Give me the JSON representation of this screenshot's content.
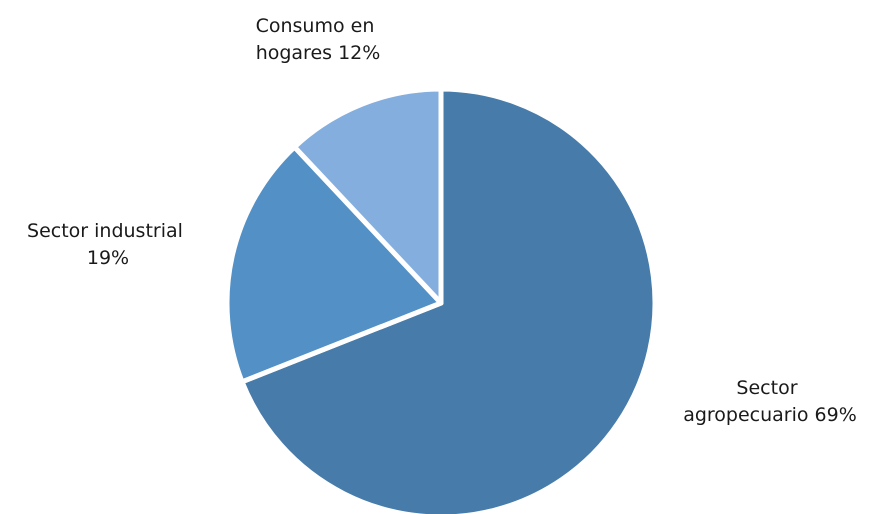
{
  "chart_data": {
    "type": "pie",
    "title": "",
    "slices": [
      {
        "label_lines": [
          "Sector",
          "agropecuario 69%"
        ],
        "value": 69,
        "color": "#467BAA"
      },
      {
        "label_lines": [
          "Sector industrial",
          "19%"
        ],
        "value": 19,
        "color": "#5290C6"
      },
      {
        "label_lines": [
          "Consumo en",
          "hogares 12%"
        ],
        "value": 12,
        "color": "#84AEDE"
      }
    ],
    "start_angle_deg": 0,
    "direction": "clockwise",
    "legend": "none",
    "data_labels": "outside"
  }
}
